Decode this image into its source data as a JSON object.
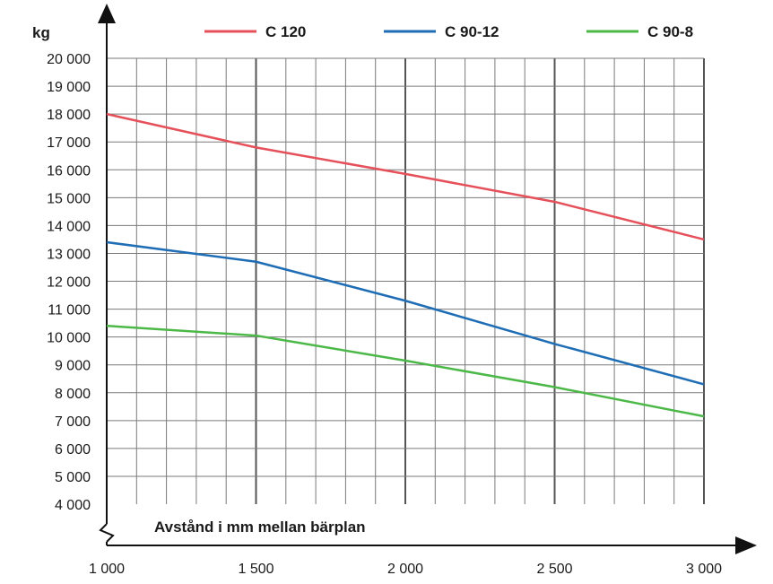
{
  "chart_data": {
    "type": "line",
    "title": "",
    "xlabel": "Avstånd i mm mellan bärplan",
    "ylabel": "kg",
    "x": [
      1000,
      1500,
      2000,
      2500,
      3000
    ],
    "x_tick_labels": [
      "1 000",
      "1 500",
      "2 000",
      "2 500",
      "3 000"
    ],
    "xlim": [
      1000,
      3000
    ],
    "ylim": [
      4000,
      20000
    ],
    "y_ticks": [
      4000,
      5000,
      6000,
      7000,
      8000,
      9000,
      10000,
      11000,
      12000,
      13000,
      14000,
      15000,
      16000,
      17000,
      18000,
      19000,
      20000
    ],
    "y_tick_labels": [
      "4 000",
      "5 000",
      "6 000",
      "7 000",
      "8 000",
      "9 000",
      "10 000",
      "11 000",
      "12 000",
      "13 000",
      "14 000",
      "15 000",
      "16 000",
      "17 000",
      "18 000",
      "19 000",
      "20 000"
    ],
    "grid": true,
    "legend_position": "top",
    "series": [
      {
        "name": "C 120",
        "color": "#e5505a",
        "values": [
          18000,
          16800,
          15850,
          14850,
          13500
        ]
      },
      {
        "name": "C 90-12",
        "color": "#1f6db5",
        "values": [
          13400,
          12700,
          11300,
          9750,
          8300
        ]
      },
      {
        "name": "C 90-8",
        "color": "#4cb848",
        "values": [
          10400,
          10050,
          9150,
          8200,
          7150
        ]
      }
    ]
  }
}
